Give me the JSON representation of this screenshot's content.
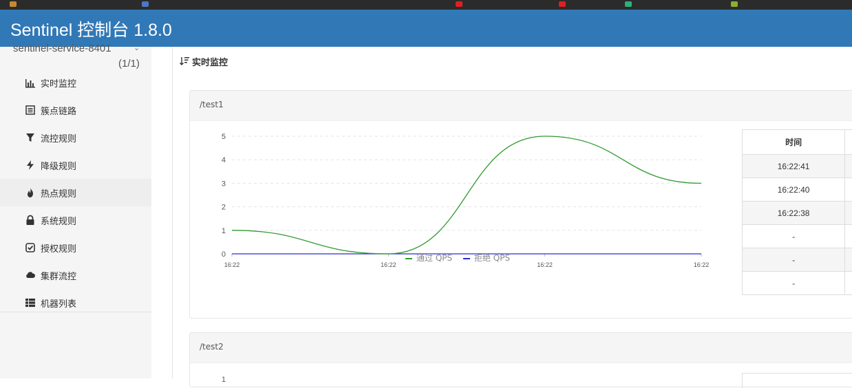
{
  "app": {
    "title": "Sentinel 控制台 1.8.0"
  },
  "sidebar": {
    "app_name": "sentinel-service-8401",
    "machine_count": "(1/1)",
    "items": [
      {
        "label": "实时监控",
        "icon": "bar-chart-icon"
      },
      {
        "label": "簇点链路",
        "icon": "list-icon"
      },
      {
        "label": "流控规则",
        "icon": "filter-icon"
      },
      {
        "label": "降级规则",
        "icon": "flash-icon"
      },
      {
        "label": "热点规则",
        "icon": "fire-icon"
      },
      {
        "label": "系统规则",
        "icon": "lock-icon"
      },
      {
        "label": "授权规则",
        "icon": "check-square-icon"
      },
      {
        "label": "集群流控",
        "icon": "cloud-icon"
      },
      {
        "label": "机器列表",
        "icon": "th-list-icon"
      }
    ],
    "active_index": 4
  },
  "main": {
    "section_title": "实时监控",
    "panels": [
      {
        "resource": "/test1",
        "table": {
          "header": "时间",
          "rows": [
            "16:22:41",
            "16:22:40",
            "16:22:38",
            "-",
            "-",
            "-"
          ]
        }
      },
      {
        "resource": "/test2"
      }
    ],
    "legend": {
      "pass": "通过 QPS",
      "block": "拒绝 QPS",
      "pass_color": "#2f9a2f",
      "block_color": "#2b2bd6"
    }
  },
  "chart_data": [
    {
      "type": "line",
      "title": "/test1",
      "x": [
        "16:22",
        "16:22",
        "16:22",
        "16:22"
      ],
      "series": [
        {
          "name": "通过 QPS",
          "values": [
            1,
            0,
            5,
            3
          ],
          "color": "#2f9a2f"
        },
        {
          "name": "拒绝 QPS",
          "values": [
            0,
            0,
            0,
            0
          ],
          "color": "#2b2bd6"
        }
      ],
      "yticks": [
        0,
        1,
        2,
        3,
        4,
        5
      ],
      "ylim": [
        0,
        5
      ],
      "grid": true,
      "legend_position": "bottom-center"
    },
    {
      "type": "line",
      "title": "/test2",
      "yticks": [
        1
      ]
    }
  ]
}
